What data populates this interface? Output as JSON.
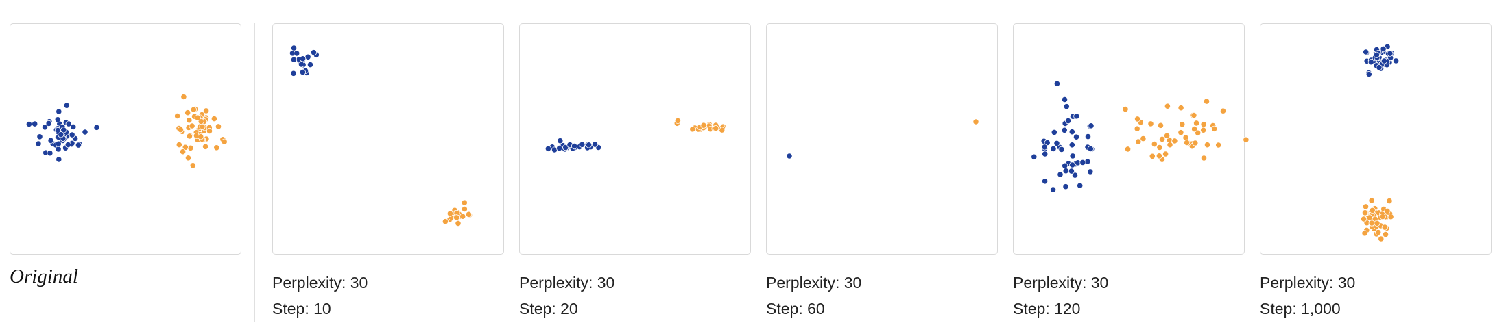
{
  "colors": {
    "cluster_a": "#1f3f9a",
    "cluster_b": "#f4a340"
  },
  "original": {
    "label": "Original"
  },
  "runs": [
    {
      "perplexity_label": "Perplexity: 30",
      "step_label": "Step: 10"
    },
    {
      "perplexity_label": "Perplexity: 30",
      "step_label": "Step: 20"
    },
    {
      "perplexity_label": "Perplexity: 30",
      "step_label": "Step: 60"
    },
    {
      "perplexity_label": "Perplexity: 30",
      "step_label": "Step: 120"
    },
    {
      "perplexity_label": "Perplexity: 30",
      "step_label": "Step: 1,000"
    }
  ]
}
